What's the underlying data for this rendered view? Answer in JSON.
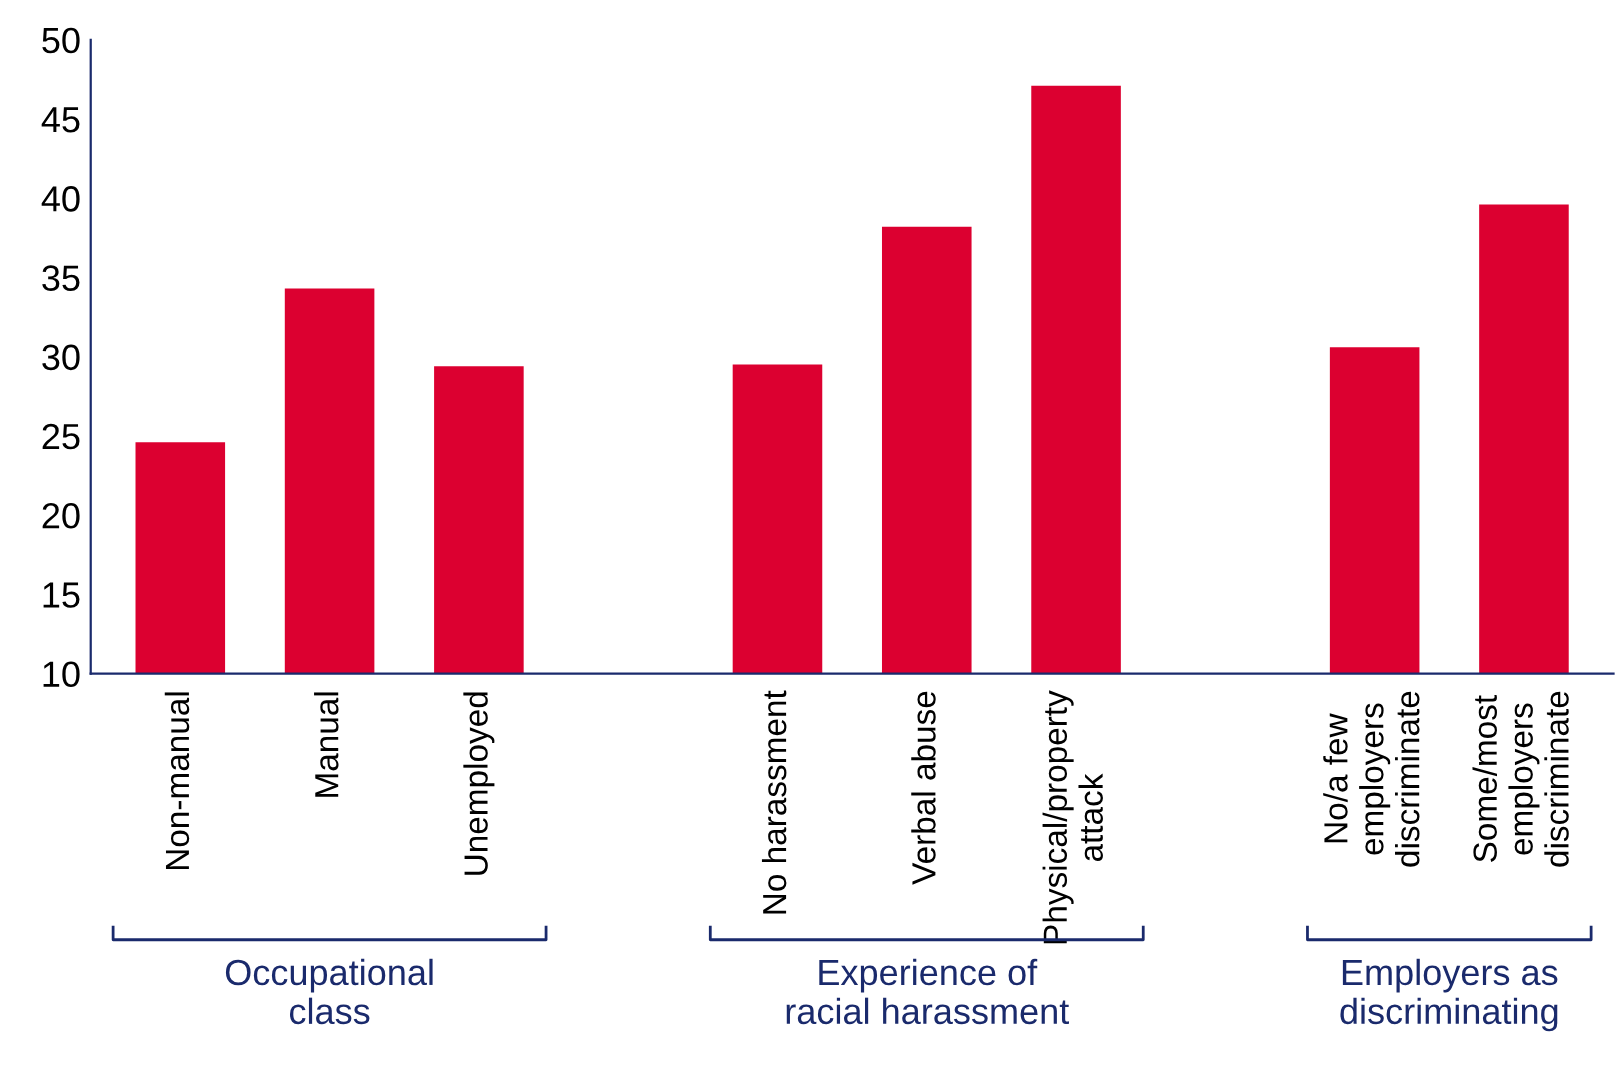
{
  "chart_data": {
    "type": "bar",
    "categories": [
      "Non-manual",
      "Manual",
      "Unemployed",
      null,
      "No harassment",
      "Verbal abuse",
      "Physical/property\nattack",
      null,
      "No/a few\nemployers\ndiscriminate",
      "Some/most\nemployers\ndiscriminate"
    ],
    "values": [
      24.6,
      34.3,
      29.4,
      null,
      29.5,
      38.2,
      47.1,
      null,
      30.6,
      39.6
    ],
    "color": "#dc0030",
    "ylim": [
      10,
      50
    ],
    "yticks": [
      10,
      15,
      20,
      25,
      30,
      35,
      40,
      45,
      50
    ],
    "grid": false,
    "annotations": [
      "Occupational\nclass",
      "Experience of\nracial harassment",
      "Employers as\ndiscriminating"
    ]
  }
}
